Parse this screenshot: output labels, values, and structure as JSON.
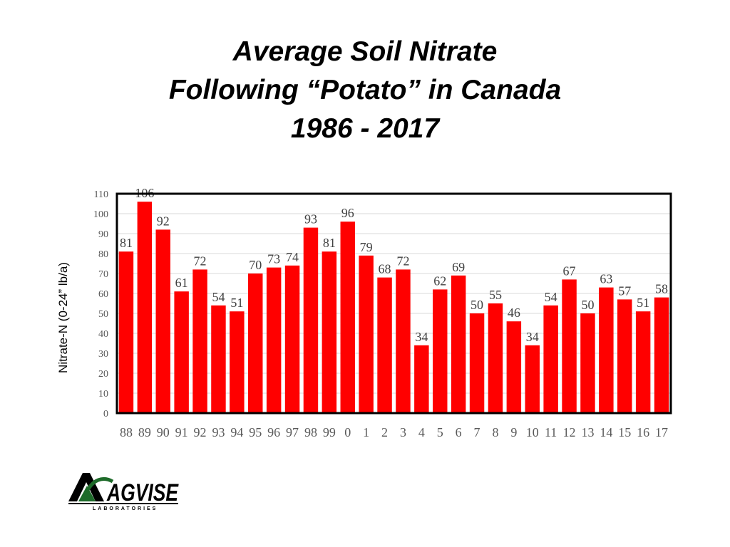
{
  "chart_data": {
    "type": "bar",
    "title": [
      "Average Soil Nitrate",
      "Following “Potato” in Canada",
      "1986 - 2017"
    ],
    "xlabel": "",
    "ylabel": "Nitrate-N (0-24” lb/a)",
    "categories": [
      "88",
      "89",
      "90",
      "91",
      "92",
      "93",
      "94",
      "95",
      "96",
      "97",
      "98",
      "99",
      "0",
      "1",
      "2",
      "3",
      "4",
      "5",
      "6",
      "7",
      "8",
      "9",
      "10",
      "11",
      "12",
      "13",
      "14",
      "15",
      "16",
      "17"
    ],
    "values": [
      81,
      106,
      92,
      61,
      72,
      54,
      51,
      70,
      73,
      74,
      93,
      81,
      96,
      79,
      68,
      72,
      34,
      62,
      69,
      50,
      55,
      46,
      34,
      54,
      67,
      50,
      63,
      57,
      51,
      58
    ],
    "ylim": [
      0,
      110
    ],
    "yticks": [
      0,
      10,
      20,
      30,
      40,
      50,
      60,
      70,
      80,
      90,
      100,
      110
    ],
    "grid": true,
    "legend": "none",
    "data_labels": true,
    "bar_color": "#ff0000",
    "grid_color": "#d9d9d9",
    "frame_color": "#000000"
  },
  "logo": {
    "name": "AGVISE",
    "tagline": "LABORATORIES",
    "icon": "agvise-logo"
  }
}
